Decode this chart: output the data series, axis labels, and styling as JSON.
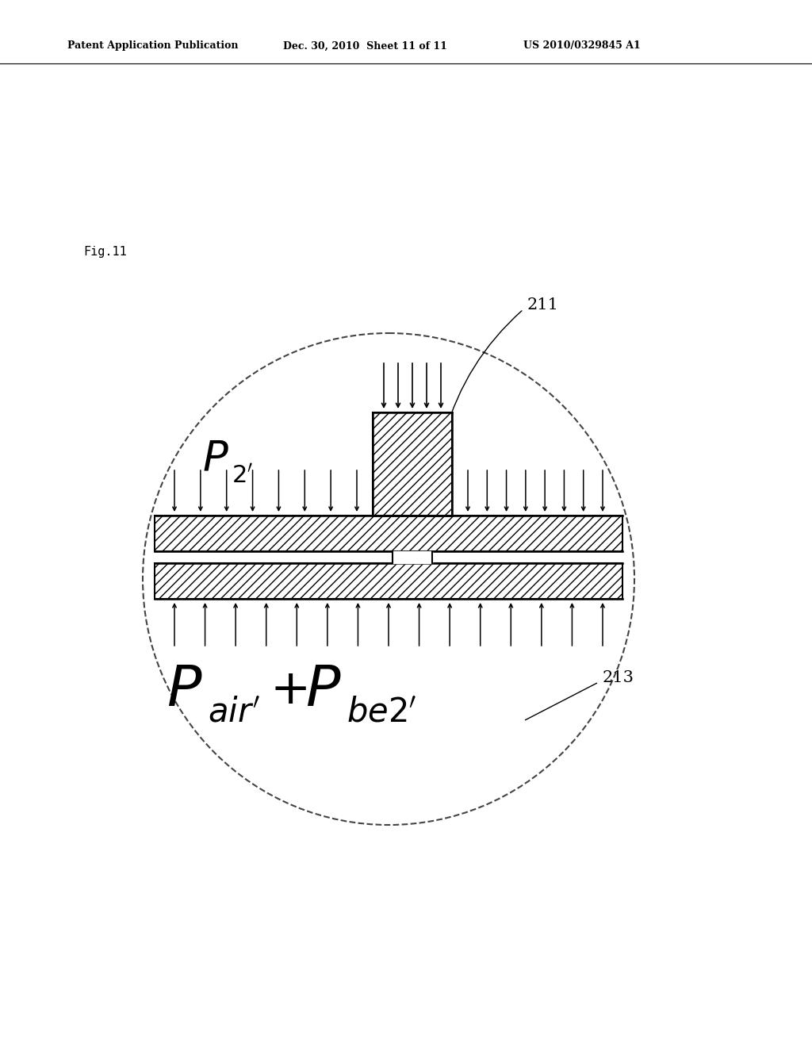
{
  "background_color": "#ffffff",
  "header_left": "Patent Application Publication",
  "header_mid": "Dec. 30, 2010  Sheet 11 of 11",
  "header_right": "US 2010/0329845 A1",
  "fig_label": "Fig.11",
  "label_211": "211",
  "label_213": "213"
}
